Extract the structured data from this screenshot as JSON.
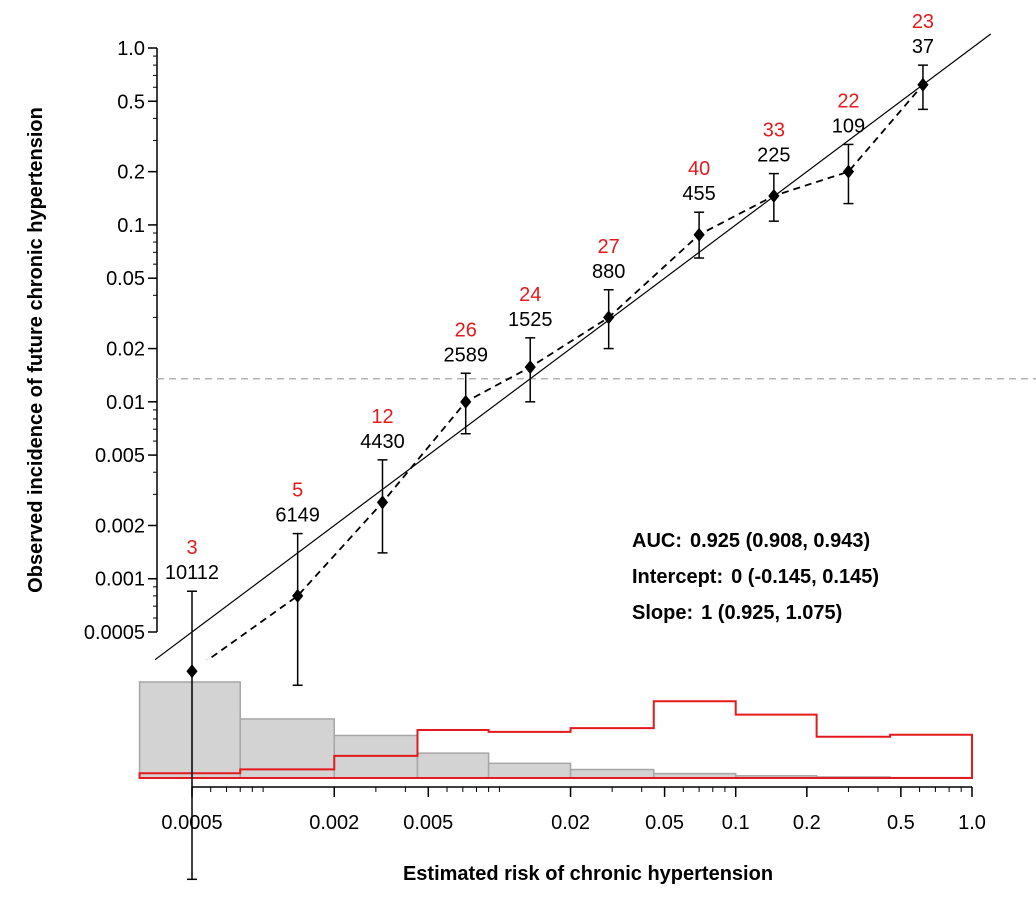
{
  "chart_data": {
    "type": "scatter",
    "xlabel": "Estimated risk of chronic hypertension",
    "ylabel": "Observed incidence of future chronic hypertension",
    "x_scale": "log",
    "y_scale": "log",
    "xlim": [
      0.0003,
      1.0
    ],
    "ylim": [
      0.00035,
      1.2
    ],
    "x_ticks": [
      {
        "value": 0.0005,
        "label": "0.0005"
      },
      {
        "value": 0.002,
        "label": "0.002"
      },
      {
        "value": 0.005,
        "label": "0.005"
      },
      {
        "value": 0.02,
        "label": "0.02"
      },
      {
        "value": 0.05,
        "label": "0.05"
      },
      {
        "value": 0.1,
        "label": "0.1"
      },
      {
        "value": 0.2,
        "label": "0.2"
      },
      {
        "value": 0.5,
        "label": "0.5"
      },
      {
        "value": 1.0,
        "label": "1.0"
      }
    ],
    "y_ticks": [
      {
        "value": 1.0,
        "label": "1.0"
      },
      {
        "value": 0.5,
        "label": "0.5"
      },
      {
        "value": 0.2,
        "label": "0.2"
      },
      {
        "value": 0.1,
        "label": "0.1"
      },
      {
        "value": 0.05,
        "label": "0.05"
      },
      {
        "value": 0.02,
        "label": "0.02"
      },
      {
        "value": 0.01,
        "label": "0.01"
      },
      {
        "value": 0.005,
        "label": "0.005"
      },
      {
        "value": 0.002,
        "label": "0.002"
      },
      {
        "value": 0.001,
        "label": "0.001"
      },
      {
        "value": 0.0005,
        "label": "0.0005"
      }
    ],
    "points": [
      {
        "x": 0.0005,
        "y": 0.0003,
        "lo": 2e-05,
        "hi": 0.00085,
        "events": "3",
        "n": "10112"
      },
      {
        "x": 0.0014,
        "y": 0.0008,
        "lo": 0.00025,
        "hi": 0.0018,
        "events": "5",
        "n": "6149"
      },
      {
        "x": 0.0032,
        "y": 0.0027,
        "lo": 0.0014,
        "hi": 0.0047,
        "events": "12",
        "n": "4430"
      },
      {
        "x": 0.0072,
        "y": 0.01,
        "lo": 0.0066,
        "hi": 0.0145,
        "events": "26",
        "n": "2589"
      },
      {
        "x": 0.0135,
        "y": 0.0157,
        "lo": 0.01,
        "hi": 0.023,
        "events": "24",
        "n": "1525"
      },
      {
        "x": 0.029,
        "y": 0.03,
        "lo": 0.02,
        "hi": 0.043,
        "events": "27",
        "n": "880"
      },
      {
        "x": 0.07,
        "y": 0.088,
        "lo": 0.065,
        "hi": 0.118,
        "events": "40",
        "n": "455"
      },
      {
        "x": 0.145,
        "y": 0.146,
        "lo": 0.105,
        "hi": 0.195,
        "events": "33",
        "n": "225"
      },
      {
        "x": 0.3,
        "y": 0.2,
        "lo": 0.132,
        "hi": 0.285,
        "events": "22",
        "n": "109"
      },
      {
        "x": 0.62,
        "y": 0.62,
        "lo": 0.45,
        "hi": 0.8,
        "events": "23",
        "n": "37"
      }
    ],
    "prevalence_line_y": 0.0135,
    "histogram": {
      "bin_edges": [
        0.0003,
        0.0008,
        0.002,
        0.0045,
        0.009,
        0.02,
        0.045,
        0.1,
        0.22,
        0.45,
        1.0
      ],
      "all_counts": [
        1.0,
        0.615,
        0.443,
        0.259,
        0.153,
        0.088,
        0.046,
        0.023,
        0.011,
        0.004
      ],
      "events_density": [
        0.05,
        0.09,
        0.23,
        0.5,
        0.48,
        0.52,
        0.8,
        0.66,
        0.43,
        0.45
      ],
      "all_color": "#d3d3d3",
      "all_stroke": "#a6a6a6",
      "events_color": "#e41a1c"
    },
    "event_label_color": "#e41a1c",
    "point_color": "#000000",
    "reference_line_color": "#000000",
    "prevalence_line_color": "#b3b3b3"
  },
  "stats": [
    {
      "key": "AUC:",
      "value": "0.925 (0.908, 0.943)"
    },
    {
      "key": "Intercept:",
      "value": "0 (-0.145, 0.145)"
    },
    {
      "key": "Slope:",
      "value": "1 (0.925, 1.075)"
    }
  ]
}
